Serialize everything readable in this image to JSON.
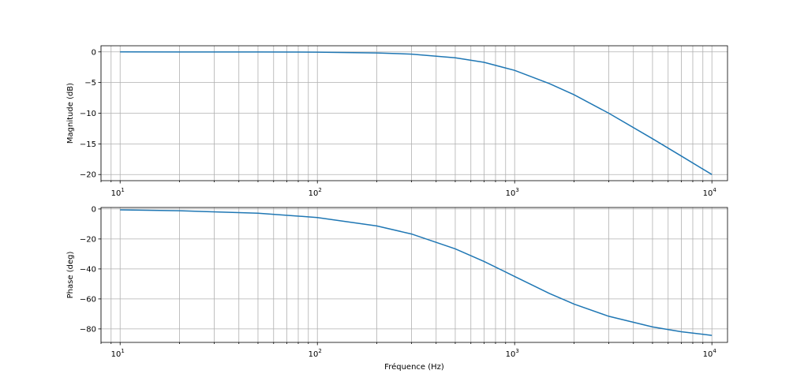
{
  "chart_data": [
    {
      "type": "line",
      "xscale": "log",
      "xlim": [
        8,
        12000
      ],
      "ylim": [
        -21,
        1
      ],
      "xlabel": "",
      "ylabel": "Magnitude (dB)",
      "grid": "both-major-minor",
      "x_ticks": [
        "10",
        "100",
        "1000",
        "10000"
      ],
      "y_ticks": [
        "0",
        "−5",
        "−10",
        "−15",
        "−20"
      ],
      "y_tick_values": [
        0,
        -5,
        -10,
        -15,
        -20
      ],
      "series": [
        {
          "color": "#1f77b4",
          "x": [
            10,
            20,
            50,
            100,
            200,
            300,
            500,
            700,
            1000,
            1500,
            2000,
            3000,
            5000,
            7000,
            10000
          ],
          "y": [
            0,
            -0.02,
            -0.01,
            -0.04,
            -0.17,
            -0.37,
            -0.97,
            -1.7,
            -3.01,
            -5.16,
            -6.99,
            -10.0,
            -14.15,
            -16.99,
            -20.0
          ]
        }
      ]
    },
    {
      "type": "line",
      "xscale": "log",
      "xlim": [
        8,
        12000
      ],
      "ylim": [
        -89,
        1
      ],
      "xlabel": "Fréquence (Hz)",
      "ylabel": "Phase (deg)",
      "grid": "both-major-minor",
      "x_ticks": [
        "10",
        "100",
        "1000",
        "10000"
      ],
      "y_ticks": [
        "0",
        "−20",
        "−40",
        "−60",
        "−80"
      ],
      "y_tick_values": [
        0,
        -20,
        -40,
        -60,
        -80
      ],
      "series": [
        {
          "color": "#1f77b4",
          "x": [
            10,
            20,
            50,
            100,
            200,
            300,
            500,
            700,
            1000,
            1500,
            2000,
            3000,
            5000,
            7000,
            10000
          ],
          "y": [
            -0.57,
            -1.15,
            -2.86,
            -5.71,
            -11.31,
            -16.7,
            -26.57,
            -34.99,
            -45.0,
            -56.31,
            -63.43,
            -71.57,
            -78.69,
            -81.87,
            -84.29
          ]
        }
      ]
    }
  ]
}
